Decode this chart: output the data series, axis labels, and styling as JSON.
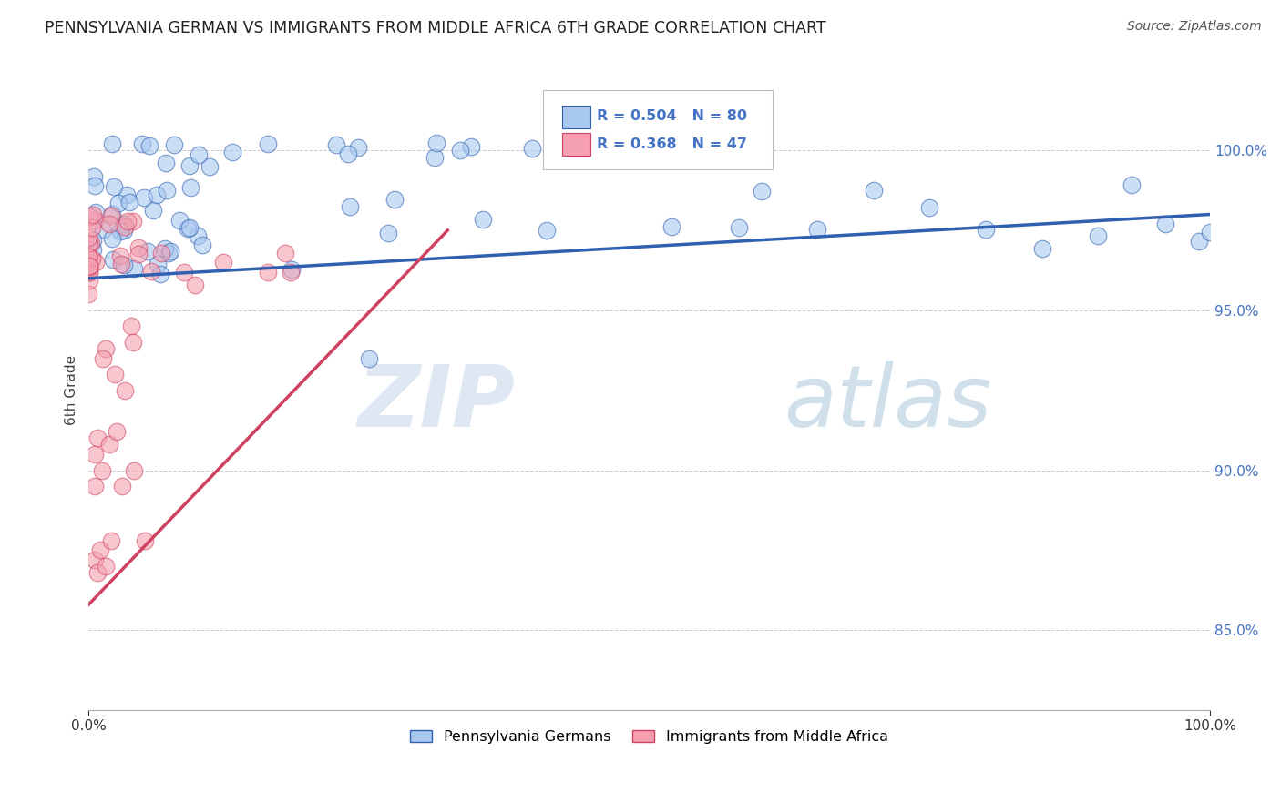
{
  "title": "PENNSYLVANIA GERMAN VS IMMIGRANTS FROM MIDDLE AFRICA 6TH GRADE CORRELATION CHART",
  "source_text": "Source: ZipAtlas.com",
  "ylabel": "6th Grade",
  "watermark_zip": "ZIP",
  "watermark_atlas": "atlas",
  "legend_label1": "Pennsylvania Germans",
  "legend_label2": "Immigrants from Middle Africa",
  "R1": 0.504,
  "N1": 80,
  "R2": 0.368,
  "N2": 47,
  "color_blue": "#A8C8F0",
  "color_pink": "#F4A0B0",
  "color_blue_line": "#3060B0",
  "color_pink_line": "#D04060",
  "xmin": 0.0,
  "xmax": 1.0,
  "ymin": 0.825,
  "ymax": 1.025,
  "yticks": [
    0.85,
    0.9,
    0.95,
    1.0
  ],
  "ytick_labels": [
    "85.0%",
    "90.0%",
    "95.0%",
    "100.0%"
  ],
  "xtick_labels": [
    "0.0%",
    "100.0%"
  ],
  "blue_trendline_x": [
    0.0,
    1.0
  ],
  "blue_trendline_y": [
    0.96,
    0.98
  ],
  "pink_trendline_x": [
    0.0,
    0.32
  ],
  "pink_trendline_y": [
    0.858,
    0.975
  ]
}
